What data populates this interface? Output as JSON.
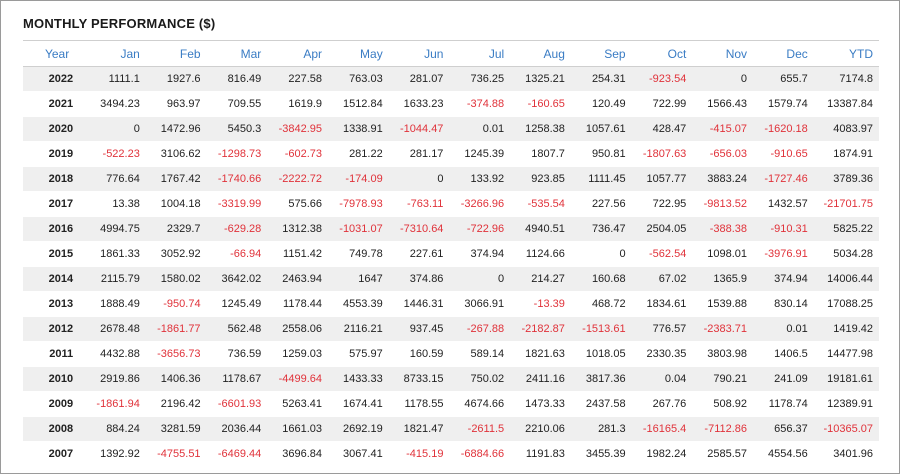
{
  "title": "MONTHLY PERFORMANCE ($)",
  "colors": {
    "header_text": "#3a7cc4",
    "negative": "#e0323a",
    "stripe": "#efefef"
  },
  "headers": [
    "Year",
    "Jan",
    "Feb",
    "Mar",
    "Apr",
    "May",
    "Jun",
    "Jul",
    "Aug",
    "Sep",
    "Oct",
    "Nov",
    "Dec",
    "YTD"
  ],
  "rows": [
    [
      "2022",
      "1111.1",
      "1927.6",
      "816.49",
      "227.58",
      "763.03",
      "281.07",
      "736.25",
      "1325.21",
      "254.31",
      "-923.54",
      "0",
      "655.7",
      "7174.8"
    ],
    [
      "2021",
      "3494.23",
      "963.97",
      "709.55",
      "1619.9",
      "1512.84",
      "1633.23",
      "-374.88",
      "-160.65",
      "120.49",
      "722.99",
      "1566.43",
      "1579.74",
      "13387.84"
    ],
    [
      "2020",
      "0",
      "1472.96",
      "5450.3",
      "-3842.95",
      "1338.91",
      "-1044.47",
      "0.01",
      "1258.38",
      "1057.61",
      "428.47",
      "-415.07",
      "-1620.18",
      "4083.97"
    ],
    [
      "2019",
      "-522.23",
      "3106.62",
      "-1298.73",
      "-602.73",
      "281.22",
      "281.17",
      "1245.39",
      "1807.7",
      "950.81",
      "-1807.63",
      "-656.03",
      "-910.65",
      "1874.91"
    ],
    [
      "2018",
      "776.64",
      "1767.42",
      "-1740.66",
      "-2222.72",
      "-174.09",
      "0",
      "133.92",
      "923.85",
      "1111.45",
      "1057.77",
      "3883.24",
      "-1727.46",
      "3789.36"
    ],
    [
      "2017",
      "13.38",
      "1004.18",
      "-3319.99",
      "575.66",
      "-7978.93",
      "-763.11",
      "-3266.96",
      "-535.54",
      "227.56",
      "722.95",
      "-9813.52",
      "1432.57",
      "-21701.75"
    ],
    [
      "2016",
      "4994.75",
      "2329.7",
      "-629.28",
      "1312.38",
      "-1031.07",
      "-7310.64",
      "-722.96",
      "4940.51",
      "736.47",
      "2504.05",
      "-388.38",
      "-910.31",
      "5825.22"
    ],
    [
      "2015",
      "1861.33",
      "3052.92",
      "-66.94",
      "1151.42",
      "749.78",
      "227.61",
      "374.94",
      "1124.66",
      "0",
      "-562.54",
      "1098.01",
      "-3976.91",
      "5034.28"
    ],
    [
      "2014",
      "2115.79",
      "1580.02",
      "3642.02",
      "2463.94",
      "1647",
      "374.86",
      "0",
      "214.27",
      "160.68",
      "67.02",
      "1365.9",
      "374.94",
      "14006.44"
    ],
    [
      "2013",
      "1888.49",
      "-950.74",
      "1245.49",
      "1178.44",
      "4553.39",
      "1446.31",
      "3066.91",
      "-13.39",
      "468.72",
      "1834.61",
      "1539.88",
      "830.14",
      "17088.25"
    ],
    [
      "2012",
      "2678.48",
      "-1861.77",
      "562.48",
      "2558.06",
      "2116.21",
      "937.45",
      "-267.88",
      "-2182.87",
      "-1513.61",
      "776.57",
      "-2383.71",
      "0.01",
      "1419.42"
    ],
    [
      "2011",
      "4432.88",
      "-3656.73",
      "736.59",
      "1259.03",
      "575.97",
      "160.59",
      "589.14",
      "1821.63",
      "1018.05",
      "2330.35",
      "3803.98",
      "1406.5",
      "14477.98"
    ],
    [
      "2010",
      "2919.86",
      "1406.36",
      "1178.67",
      "-4499.64",
      "1433.33",
      "8733.15",
      "750.02",
      "2411.16",
      "3817.36",
      "0.04",
      "790.21",
      "241.09",
      "19181.61"
    ],
    [
      "2009",
      "-1861.94",
      "2196.42",
      "-6601.93",
      "5263.41",
      "1674.41",
      "1178.55",
      "4674.66",
      "1473.33",
      "2437.58",
      "267.76",
      "508.92",
      "1178.74",
      "12389.91"
    ],
    [
      "2008",
      "884.24",
      "3281.59",
      "2036.44",
      "1661.03",
      "2692.19",
      "1821.47",
      "-2611.5",
      "2210.06",
      "281.3",
      "-16165.4",
      "-7112.86",
      "656.37",
      "-10365.07"
    ],
    [
      "2007",
      "1392.92",
      "-4755.51",
      "-6469.44",
      "3696.84",
      "3067.41",
      "-415.19",
      "-6884.66",
      "1191.83",
      "3455.39",
      "1982.24",
      "2585.57",
      "4554.56",
      "3401.96"
    ]
  ]
}
